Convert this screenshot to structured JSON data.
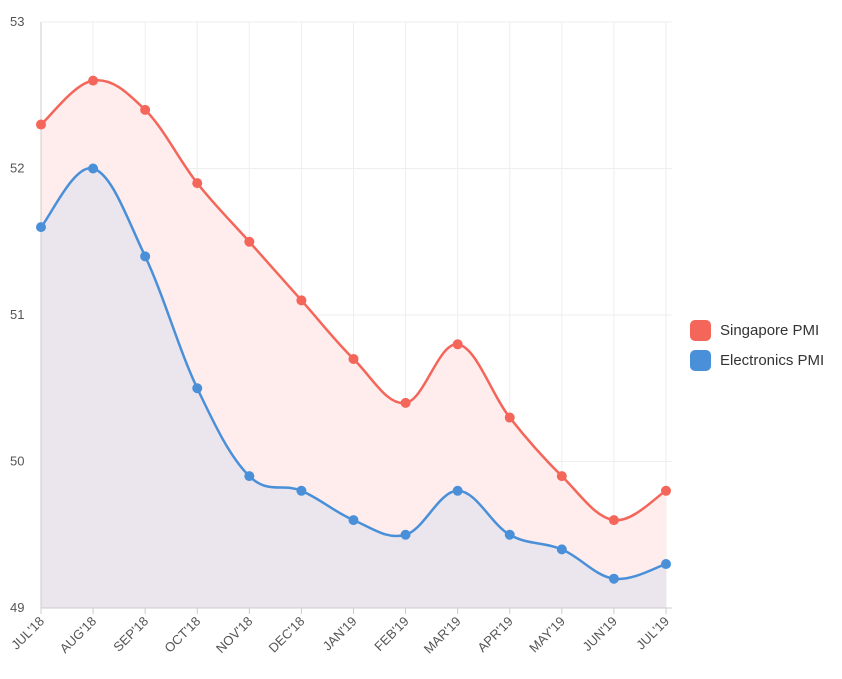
{
  "chart_data": {
    "type": "area",
    "categories": [
      "JUL'18",
      "AUG'18",
      "SEP'18",
      "OCT'18",
      "NOV'18",
      "DEC'18",
      "JAN'19",
      "FEB'19",
      "MAR'19",
      "APR'19",
      "MAY'19",
      "JUN'19",
      "JUL'19"
    ],
    "series": [
      {
        "name": "Singapore PMI",
        "color": "#f4665a",
        "fill": "#ffecec",
        "values": [
          52.3,
          52.6,
          52.4,
          51.9,
          51.5,
          51.1,
          50.7,
          50.4,
          50.8,
          50.3,
          49.9,
          49.6,
          49.8
        ]
      },
      {
        "name": "Electronics PMI",
        "color": "#4a90d9",
        "fill": "#ebe6ee",
        "values": [
          51.6,
          52.0,
          51.4,
          50.5,
          49.9,
          49.8,
          49.6,
          49.5,
          49.8,
          49.5,
          49.4,
          49.2,
          49.3
        ]
      }
    ],
    "ylim": [
      49,
      53
    ],
    "yticks": [
      "49",
      "50",
      "51",
      "52",
      "53"
    ],
    "grid": true,
    "legend_position": "right",
    "curve": "smooth",
    "title": "",
    "xlabel": "",
    "ylabel": ""
  }
}
